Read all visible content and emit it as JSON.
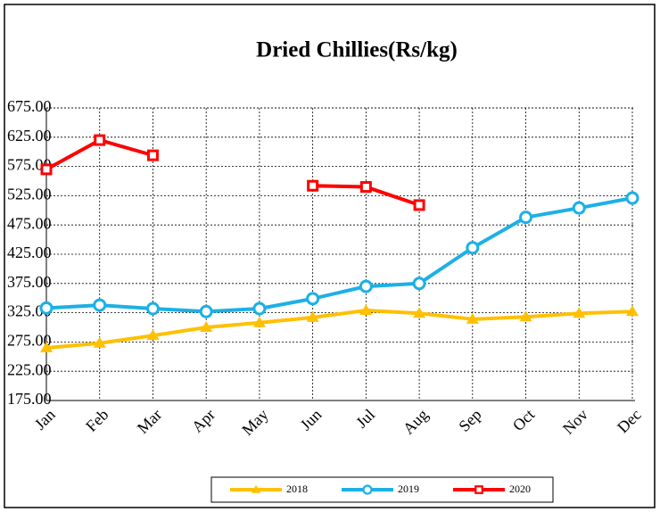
{
  "chart_data": {
    "type": "line",
    "title": "Dried Chillies(Rs/kg)",
    "categories": [
      "Jan",
      "Feb",
      "Mar",
      "Apr",
      "May",
      "Jun",
      "Jul",
      "Aug",
      "Sep",
      "Oct",
      "Nov",
      "Dec"
    ],
    "series": [
      {
        "name": "2018",
        "color": "#FFC000",
        "marker": "triangle",
        "values": [
          265,
          273,
          286,
          300,
          308,
          317,
          329,
          324,
          314,
          318,
          324,
          327
        ]
      },
      {
        "name": "2019",
        "color": "#1CB0E6",
        "marker": "circle",
        "values": [
          333,
          338,
          332,
          327,
          332,
          349,
          370,
          375,
          436,
          488,
          504,
          521
        ]
      },
      {
        "name": "2020",
        "color": "#FF0000",
        "marker": "square",
        "values": [
          570,
          620,
          594,
          null,
          null,
          542,
          540,
          509,
          null,
          null,
          null,
          null
        ]
      }
    ],
    "ylim": [
      175,
      675
    ],
    "yticks": [
      {
        "value": 175,
        "label": "175.00"
      },
      {
        "value": 225,
        "label": "225.00"
      },
      {
        "value": 275,
        "label": "275.00"
      },
      {
        "value": 325,
        "label": "325.00"
      },
      {
        "value": 375,
        "label": "375.00"
      },
      {
        "value": 425,
        "label": "425.00"
      },
      {
        "value": 475,
        "label": "475.00"
      },
      {
        "value": 525,
        "label": "525.00"
      },
      {
        "value": 575,
        "label": "575.00"
      },
      {
        "value": 625,
        "label": "625.00"
      },
      {
        "value": 675,
        "label": "675.00"
      }
    ],
    "grid": true,
    "legend": "bottom"
  }
}
